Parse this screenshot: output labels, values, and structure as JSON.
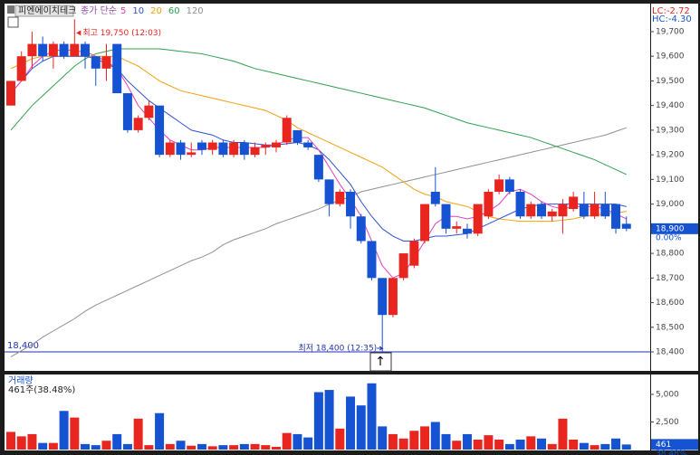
{
  "chart_data": [
    {
      "type": "candlestick",
      "title": "피엔에이치테크",
      "ma_title": "종가 단순",
      "lc_label": "LC:-2.72",
      "hc_label": "HC:-4.30",
      "up_color": "#e8251f",
      "down_color": "#1653d3",
      "candles": {
        "open": [
          19400,
          19500,
          19600,
          19650,
          19600,
          19650,
          19600,
          19650,
          19600,
          19550,
          19650,
          19450,
          19300,
          19350,
          19400,
          19200,
          19250,
          19200,
          19250,
          19220,
          19250,
          19200,
          19250,
          19200,
          19230,
          19230,
          19250,
          19300,
          19250,
          19200,
          19100,
          19000,
          19050,
          18950,
          18850,
          18700,
          18550,
          18700,
          18750,
          18850,
          19050,
          19000,
          18900,
          18900,
          18880,
          18950,
          19050,
          19100,
          19050,
          18950,
          19000,
          18950,
          18950,
          18980,
          19000,
          18950,
          19000,
          19000,
          18920
        ],
        "high": [
          19500,
          19620,
          19700,
          19680,
          19660,
          19660,
          19750,
          19660,
          19600,
          19650,
          19650,
          19450,
          19360,
          19420,
          19400,
          19260,
          19260,
          19250,
          19260,
          19260,
          19260,
          19260,
          19260,
          19250,
          19250,
          19260,
          19360,
          19300,
          19260,
          19200,
          19100,
          19060,
          19060,
          18960,
          18850,
          18700,
          18700,
          18800,
          18860,
          19000,
          19150,
          19000,
          18930,
          18920,
          19000,
          19060,
          19120,
          19110,
          19060,
          19010,
          19010,
          18980,
          19020,
          19050,
          19050,
          19050,
          19050,
          19000,
          18950
        ],
        "low": [
          19400,
          19500,
          19550,
          19580,
          19550,
          19590,
          19600,
          19550,
          19480,
          19500,
          19450,
          19290,
          19290,
          19340,
          19190,
          19190,
          19180,
          19190,
          19200,
          19200,
          19190,
          19190,
          19180,
          19190,
          19200,
          19210,
          19240,
          19240,
          19220,
          19090,
          18950,
          18990,
          18900,
          18840,
          18690,
          18400,
          18540,
          18690,
          18740,
          18840,
          18990,
          18880,
          18880,
          18860,
          18870,
          18940,
          19040,
          19040,
          18940,
          18940,
          18940,
          18930,
          18880,
          18970,
          18940,
          18940,
          18940,
          18880,
          18890
        ],
        "close": [
          19500,
          19600,
          19650,
          19600,
          19650,
          19600,
          19650,
          19600,
          19550,
          19600,
          19450,
          19300,
          19350,
          19400,
          19200,
          19250,
          19200,
          19210,
          19220,
          19250,
          19200,
          19250,
          19200,
          19230,
          19240,
          19250,
          19350,
          19250,
          19230,
          19100,
          19000,
          19050,
          18950,
          18850,
          18700,
          18550,
          18700,
          18800,
          18850,
          19000,
          19000,
          18900,
          18910,
          18880,
          19000,
          19050,
          19100,
          19050,
          18950,
          19000,
          18950,
          18970,
          19000,
          19030,
          18950,
          19000,
          18950,
          18900,
          18900
        ]
      },
      "series": [
        {
          "name": "5",
          "color": "#e040c0",
          "values": [
            19450,
            19500,
            19560,
            19600,
            19620,
            19630,
            19620,
            19620,
            19600,
            19580,
            19550,
            19480,
            19400,
            19350,
            19300,
            19260,
            19240,
            19220,
            19220,
            19230,
            19230,
            19230,
            19230,
            19230,
            19230,
            19240,
            19260,
            19270,
            19270,
            19220,
            19150,
            19080,
            19020,
            18950,
            18850,
            18750,
            18700,
            18720,
            18780,
            18850,
            18920,
            18950,
            18950,
            18940,
            18950,
            18970,
            19000,
            19050,
            19060,
            19040,
            19010,
            18990,
            18980,
            18990,
            18990,
            18990,
            18980,
            18960,
            18940
          ]
        },
        {
          "name": "10",
          "color": "#3050d0",
          "values": [
            19450,
            19500,
            19550,
            19580,
            19600,
            19600,
            19600,
            19600,
            19590,
            19570,
            19550,
            19500,
            19460,
            19420,
            19390,
            19360,
            19330,
            19300,
            19290,
            19280,
            19260,
            19250,
            19250,
            19245,
            19240,
            19240,
            19245,
            19250,
            19240,
            19220,
            19180,
            19130,
            19080,
            19010,
            18950,
            18900,
            18870,
            18850,
            18850,
            18860,
            18870,
            18870,
            18875,
            18880,
            18900,
            18920,
            18940,
            18960,
            18980,
            18990,
            19000,
            19000,
            19000,
            19000,
            19000,
            19000,
            19000,
            19000,
            18990
          ]
        },
        {
          "name": "20",
          "color": "#f0a010",
          "values": [
            19550,
            19570,
            19590,
            19600,
            19600,
            19600,
            19600,
            19600,
            19600,
            19600,
            19600,
            19580,
            19560,
            19530,
            19500,
            19480,
            19460,
            19450,
            19440,
            19430,
            19420,
            19410,
            19400,
            19390,
            19380,
            19360,
            19340,
            19310,
            19290,
            19270,
            19250,
            19230,
            19210,
            19190,
            19170,
            19150,
            19120,
            19090,
            19060,
            19040,
            19030,
            19010,
            19000,
            18990,
            18970,
            18950,
            18940,
            18935,
            18930,
            18930,
            18930,
            18930,
            18935,
            18940,
            18950,
            18955,
            18960,
            18965,
            18970
          ]
        },
        {
          "name": "60",
          "color": "#30a050",
          "values": [
            19300,
            19350,
            19400,
            19440,
            19480,
            19520,
            19560,
            19590,
            19610,
            19620,
            19630,
            19630,
            19630,
            19630,
            19630,
            19625,
            19620,
            19615,
            19610,
            19600,
            19590,
            19580,
            19565,
            19550,
            19540,
            19530,
            19520,
            19510,
            19500,
            19490,
            19480,
            19470,
            19460,
            19450,
            19440,
            19430,
            19420,
            19410,
            19400,
            19390,
            19375,
            19360,
            19345,
            19330,
            19320,
            19310,
            19300,
            19290,
            19280,
            19270,
            19255,
            19240,
            19225,
            19210,
            19195,
            19180,
            19160,
            19140,
            19120
          ]
        },
        {
          "name": "120",
          "color": "#909090",
          "values": [
            18380,
            18405,
            18430,
            18460,
            18485,
            18510,
            18535,
            18565,
            18590,
            18610,
            18630,
            18650,
            18670,
            18690,
            18710,
            18730,
            18750,
            18770,
            18785,
            18805,
            18835,
            18855,
            18870,
            18885,
            18900,
            18920,
            18935,
            18950,
            18965,
            18980,
            19000,
            19015,
            19030,
            19050,
            19060,
            19070,
            19080,
            19090,
            19100,
            19110,
            19120,
            19130,
            19140,
            19150,
            19160,
            19170,
            19180,
            19190,
            19200,
            19210,
            19220,
            19230,
            19240,
            19250,
            19260,
            19270,
            19280,
            19295,
            19310
          ]
        }
      ],
      "ylim": [
        18323,
        19810
      ],
      "yticks": [
        {
          "value": 18400,
          "label": "18,400"
        },
        {
          "value": 18500,
          "label": "18,500"
        },
        {
          "value": 18600,
          "label": "18,600"
        },
        {
          "value": 18700,
          "label": "18,700"
        },
        {
          "value": 18800,
          "label": "18,800"
        },
        {
          "value": 18900,
          "label": "18,900"
        },
        {
          "value": 19000,
          "label": "19,000"
        },
        {
          "value": 19100,
          "label": "19,100"
        },
        {
          "value": 19200,
          "label": "19,200"
        },
        {
          "value": 19300,
          "label": "19,300"
        },
        {
          "value": 19400,
          "label": "19,400"
        },
        {
          "value": 19500,
          "label": "19,500"
        },
        {
          "value": 19600,
          "label": "19,600"
        },
        {
          "value": 19700,
          "label": "19,700"
        }
      ],
      "high_note": {
        "value": 19750,
        "text": "최고 19,750 (12:03)"
      },
      "low_note": {
        "value": 18400,
        "text": "최저 18,400 (12:35)"
      },
      "low_line": {
        "value": 18400,
        "label": "18,400"
      },
      "current": {
        "value": 18900,
        "label": "18,900",
        "change": "0.00%"
      }
    },
    {
      "type": "bar",
      "title": "거래량",
      "subtitle": "461주(38.48%)",
      "values": [
        1600,
        1200,
        1400,
        600,
        600,
        3500,
        2900,
        500,
        400,
        800,
        1400,
        500,
        2800,
        400,
        3300,
        500,
        800,
        350,
        500,
        300,
        400,
        400,
        500,
        500,
        400,
        250,
        1500,
        1400,
        1100,
        5200,
        5400,
        1900,
        4800,
        4000,
        6000,
        2100,
        1400,
        1000,
        1700,
        2100,
        2500,
        1400,
        800,
        1400,
        900,
        1300,
        900,
        500,
        900,
        1200,
        1000,
        500,
        2800,
        900,
        600,
        400,
        500,
        1000,
        461
      ],
      "ylim": [
        0,
        6800
      ],
      "yticks": [
        {
          "value": 2500,
          "label": "2,500"
        },
        {
          "value": 5000,
          "label": "5,000"
        }
      ],
      "last_label": "461",
      "last_pct": "38.48%"
    }
  ]
}
